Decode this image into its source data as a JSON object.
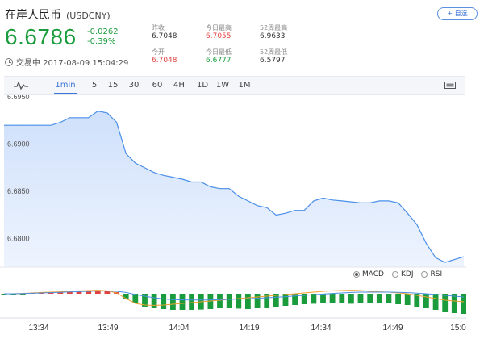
{
  "header": {
    "title": "在岸人民币",
    "code": "(USDCNY)",
    "price": "6.6786",
    "change": "-0.0262",
    "change_pct": "-0.39%",
    "status": "交易中 2017-08-09 15:04:29",
    "add_label": "+ 自选"
  },
  "stats": [
    {
      "label": "昨收",
      "value": "6.7048",
      "tone": "dark"
    },
    {
      "label": "今日最高",
      "value": "6.7055",
      "tone": "red"
    },
    {
      "label": "52周最高",
      "value": "6.9633",
      "tone": "dark"
    },
    {
      "label": "今开",
      "value": "6.7048",
      "tone": "red"
    },
    {
      "label": "今日最低",
      "value": "6.6777",
      "tone": "green"
    },
    {
      "label": "52周最低",
      "value": "6.5797",
      "tone": "dark"
    }
  ],
  "tabs": [
    "1min",
    "5",
    "15",
    "30",
    "60",
    "4H",
    "1D",
    "1W",
    "1M"
  ],
  "active_tab": "1min",
  "indicators": [
    {
      "label": "MACD",
      "selected": true
    },
    {
      "label": "KDJ",
      "selected": false
    },
    {
      "label": "RSI",
      "selected": false
    }
  ],
  "chart_data": {
    "type": "area",
    "y_ticks": [
      "6.6950",
      "6.6900",
      "6.6850",
      "6.6800"
    ],
    "ylim": [
      6.6775,
      6.6955
    ],
    "x_ticks": [
      "13:34",
      "13:49",
      "14:04",
      "14:19",
      "14:34",
      "14:49",
      "15:0"
    ],
    "x": [
      "13:32",
      "13:34",
      "13:36",
      "13:38",
      "13:40",
      "13:42",
      "13:44",
      "13:46",
      "13:48",
      "13:49",
      "13:50",
      "13:52",
      "13:54",
      "13:56",
      "13:58",
      "14:00",
      "14:02",
      "14:04",
      "14:06",
      "14:08",
      "14:10",
      "14:12",
      "14:14",
      "14:16",
      "14:18",
      "14:19",
      "14:20",
      "14:22",
      "14:24",
      "14:26",
      "14:28",
      "14:30",
      "14:32",
      "14:34",
      "14:36",
      "14:38",
      "14:40",
      "14:42",
      "14:44",
      "14:46",
      "14:48",
      "14:49",
      "14:50",
      "14:52",
      "14:54",
      "14:56",
      "14:58",
      "15:00",
      "15:02",
      "15:04"
    ],
    "y": [
      6.6925,
      6.6925,
      6.6925,
      6.6925,
      6.6925,
      6.6925,
      6.6928,
      6.6933,
      6.6933,
      6.6933,
      6.694,
      6.6938,
      6.6928,
      6.6895,
      6.6885,
      6.688,
      6.6875,
      6.6872,
      6.687,
      6.6868,
      6.6865,
      6.6865,
      6.686,
      6.6858,
      6.6858,
      6.685,
      6.6845,
      6.684,
      6.6838,
      6.683,
      6.6832,
      6.6835,
      6.6835,
      6.6845,
      6.6848,
      6.6846,
      6.6845,
      6.6844,
      6.6843,
      6.6843,
      6.6845,
      6.6845,
      6.6843,
      6.6832,
      6.682,
      6.68,
      6.6785,
      6.678,
      6.6783,
      6.6786
    ],
    "macd": {
      "hist": [
        -0.1,
        -0.1,
        -0.1,
        0.05,
        0.08,
        0.1,
        0.12,
        0.15,
        0.18,
        0.2,
        0.22,
        0.2,
        0.1,
        -0.3,
        -0.6,
        -0.8,
        -0.9,
        -0.95,
        -1.0,
        -1.0,
        -1.0,
        -0.98,
        -0.95,
        -0.9,
        -0.9,
        -0.92,
        -0.95,
        -0.9,
        -0.85,
        -0.8,
        -0.75,
        -0.7,
        -0.65,
        -0.62,
        -0.6,
        -0.58,
        -0.6,
        -0.62,
        -0.6,
        -0.55,
        -0.55,
        -0.6,
        -0.65,
        -0.7,
        -0.8,
        -0.9,
        -1.0,
        -1.1,
        -1.2,
        -1.25
      ],
      "dif": [
        0,
        0,
        0.02,
        0.05,
        0.08,
        0.1,
        0.12,
        0.15,
        0.18,
        0.2,
        0.22,
        0.18,
        0.05,
        -0.3,
        -0.6,
        -0.7,
        -0.72,
        -0.7,
        -0.65,
        -0.6,
        -0.55,
        -0.5,
        -0.45,
        -0.4,
        -0.35,
        -0.3,
        -0.25,
        -0.2,
        -0.15,
        -0.1,
        -0.05,
        0,
        0.05,
        0.1,
        0.15,
        0.18,
        0.2,
        0.22,
        0.2,
        0.15,
        0.12,
        0.1,
        0.05,
        0,
        -0.1,
        -0.2,
        -0.3,
        -0.4,
        -0.45,
        -0.5
      ],
      "dea": [
        0,
        0,
        0.01,
        0.03,
        0.05,
        0.07,
        0.09,
        0.11,
        0.13,
        0.15,
        0.17,
        0.17,
        0.15,
        0.08,
        -0.05,
        -0.15,
        -0.25,
        -0.32,
        -0.36,
        -0.38,
        -0.39,
        -0.39,
        -0.38,
        -0.37,
        -0.35,
        -0.33,
        -0.31,
        -0.28,
        -0.25,
        -0.22,
        -0.18,
        -0.14,
        -0.1,
        -0.06,
        -0.02,
        0.02,
        0.05,
        0.08,
        0.1,
        0.1,
        0.1,
        0.1,
        0.09,
        0.07,
        0.04,
        0,
        -0.05,
        -0.1,
        -0.15,
        -0.2
      ]
    }
  },
  "colors": {
    "line": "#4a8fe8",
    "fill_top": "#cfe0fb",
    "fill_bottom": "#eef4fe",
    "up": "#e0433f",
    "down": "#1a9c3c",
    "dif": "#f0a030",
    "dea": "#4a90e2"
  }
}
